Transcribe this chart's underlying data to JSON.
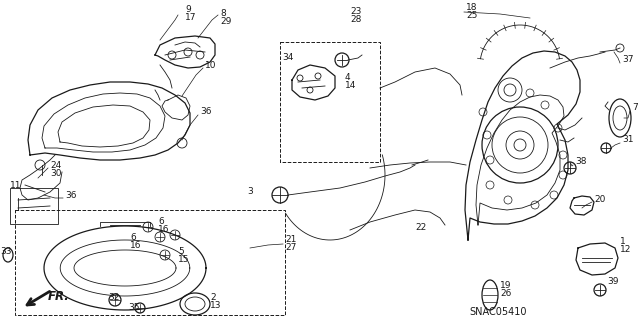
{
  "bg_color": "#ffffff",
  "diagram_color": "#1a1a1a",
  "figsize": [
    6.4,
    3.19
  ],
  "dpi": 100,
  "snac_code": "SNAC05410",
  "fr_label": "FR."
}
